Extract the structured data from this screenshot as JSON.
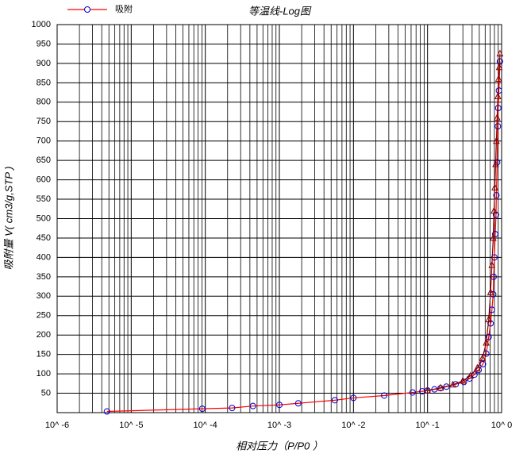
{
  "chart_data": {
    "type": "line",
    "title": "等温线-Log图",
    "xlabel": "相对压力（P/P0 ）",
    "ylabel": "吸附量 V( cm3/g,STP )",
    "xscale": "log",
    "xlim": [
      1e-06,
      1
    ],
    "xticks": [
      {
        "value": 1e-06,
        "label": "10^ -6"
      },
      {
        "value": 1e-05,
        "label": "10^ -5"
      },
      {
        "value": 0.0001,
        "label": "10^ -4"
      },
      {
        "value": 0.001,
        "label": "10^ -3"
      },
      {
        "value": 0.01,
        "label": "10^ -2"
      },
      {
        "value": 0.1,
        "label": "10^ -1"
      },
      {
        "value": 1,
        "label": "10^ 0"
      }
    ],
    "ylim": [
      0,
      1000
    ],
    "yticks": [
      50,
      100,
      150,
      200,
      250,
      300,
      350,
      400,
      450,
      500,
      550,
      600,
      650,
      700,
      750,
      800,
      850,
      900,
      950,
      1000
    ],
    "grid": true,
    "legend": "top-left",
    "series": [
      {
        "name": "吸附",
        "color": "#ff0000",
        "marker": "circle",
        "marker_color": "#0000cc",
        "x": [
          4.7e-06,
          9.1e-05,
          0.00023,
          0.00044,
          0.001,
          0.0018,
          0.0056,
          0.01,
          0.026,
          0.063,
          0.085,
          0.1,
          0.124,
          0.15,
          0.18,
          0.24,
          0.31,
          0.37,
          0.43,
          0.49,
          0.56,
          0.62,
          0.67,
          0.71,
          0.74,
          0.77,
          0.78,
          0.8,
          0.82,
          0.84,
          0.85,
          0.87,
          0.89,
          0.9,
          0.92,
          0.95
        ],
        "values": [
          3,
          10,
          12,
          17,
          20,
          24,
          32,
          38,
          44,
          52,
          55,
          57,
          60,
          63,
          67,
          73,
          79,
          88,
          98,
          110,
          125,
          152,
          195,
          230,
          265,
          305,
          350,
          400,
          460,
          510,
          560,
          645,
          738,
          785,
          830,
          905
        ]
      },
      {
        "color": "#8b0000",
        "marker": "triangle",
        "x": [
          0.95,
          0.93,
          0.91,
          0.89,
          0.87,
          0.85,
          0.83,
          0.81,
          0.79,
          0.77,
          0.74,
          0.71,
          0.67,
          0.62,
          0.55,
          0.47,
          0.38,
          0.3,
          0.22,
          0.15,
          0.1
        ],
        "values": [
          925,
          890,
          860,
          815,
          760,
          700,
          640,
          580,
          520,
          450,
          380,
          310,
          240,
          180,
          140,
          115,
          95,
          82,
          72,
          64,
          57
        ]
      }
    ]
  }
}
